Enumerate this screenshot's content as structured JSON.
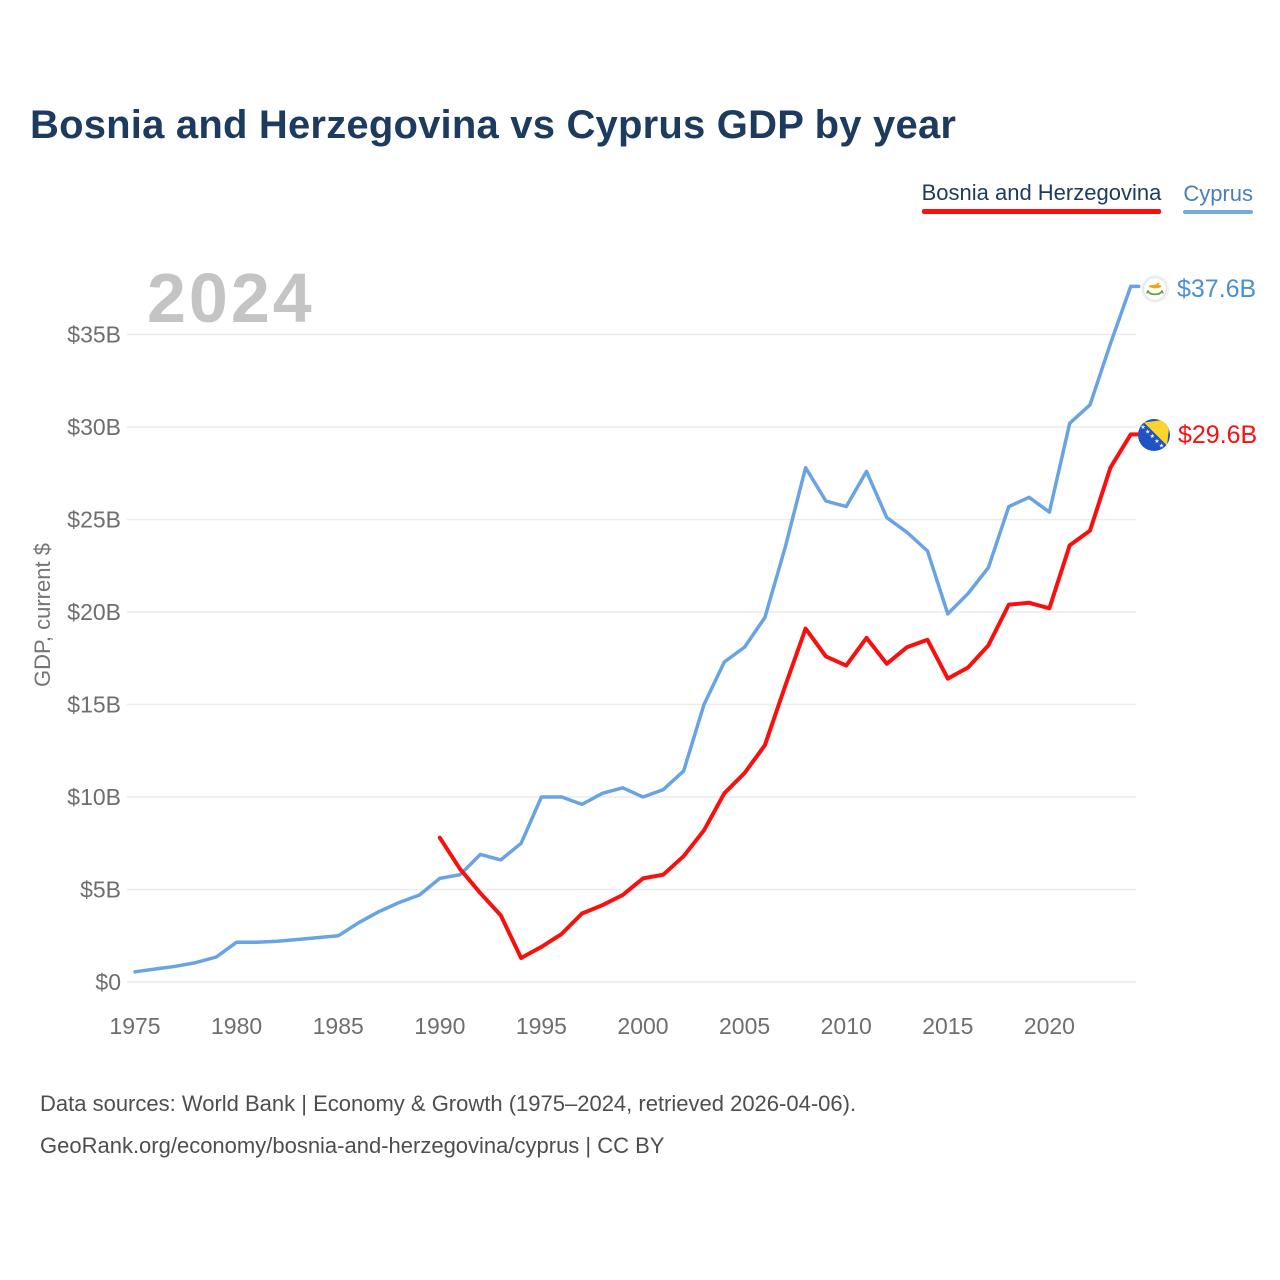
{
  "page": {
    "title": "Bosnia and Herzegovina vs Cyprus GDP by year",
    "watermark": "2024",
    "footer_line1": "Data sources: World Bank | Economy & Growth (1975–2024, retrieved 2026-04-06).",
    "footer_line2": "GeoRank.org/economy/bosnia-and-herzegovina/cyprus | CC BY"
  },
  "legend": {
    "items": [
      {
        "label": "Bosnia and Herzegovina",
        "underline_color": "#fa0f0f",
        "text_color": "#1d3a5f"
      },
      {
        "label": "Cyprus",
        "underline_color": "#76abe0",
        "text_color": "#4a7fb5"
      }
    ]
  },
  "end_labels": [
    {
      "series": "Cyprus",
      "label": "$37.6B",
      "color": "#4a90d5",
      "flag": "cyprus-flag"
    },
    {
      "series": "Bosnia and Herzegovina",
      "label": "$29.6B",
      "color": "#fa0f0f",
      "flag": "bosnia-flag"
    }
  ],
  "chart_data": {
    "type": "line",
    "title": "Bosnia and Herzegovina vs Cyprus GDP by year",
    "xlabel": "",
    "ylabel": "GDP, current $",
    "grid": "horizontal",
    "legend_position": "top-right",
    "xlim": [
      1975,
      2024
    ],
    "ylim": [
      0,
      38
    ],
    "x_ticks": [
      1975,
      1980,
      1985,
      1990,
      1995,
      2000,
      2005,
      2010,
      2015,
      2020
    ],
    "y_ticks": [
      {
        "label": "$0",
        "value": 0
      },
      {
        "label": "$5B",
        "value": 5
      },
      {
        "label": "$10B",
        "value": 10
      },
      {
        "label": "$15B",
        "value": 15
      },
      {
        "label": "$20B",
        "value": 20
      },
      {
        "label": "$25B",
        "value": 25
      },
      {
        "label": "$30B",
        "value": 30
      },
      {
        "label": "$35B",
        "value": 35
      }
    ],
    "x": [
      1975,
      1976,
      1977,
      1978,
      1979,
      1980,
      1981,
      1982,
      1983,
      1984,
      1985,
      1986,
      1987,
      1988,
      1989,
      1990,
      1991,
      1992,
      1993,
      1994,
      1995,
      1996,
      1997,
      1998,
      1999,
      2000,
      2001,
      2002,
      2003,
      2004,
      2005,
      2006,
      2007,
      2008,
      2009,
      2010,
      2011,
      2012,
      2013,
      2014,
      2015,
      2016,
      2017,
      2018,
      2019,
      2020,
      2021,
      2022,
      2023,
      2024
    ],
    "series": [
      {
        "name": "Bosnia and Herzegovina",
        "color": "#fa0f0f",
        "end_label": "$29.6B",
        "values": [
          null,
          null,
          null,
          null,
          null,
          null,
          null,
          null,
          null,
          null,
          null,
          null,
          null,
          null,
          null,
          7.8,
          6.1,
          4.8,
          3.6,
          1.3,
          1.9,
          2.6,
          3.7,
          4.15,
          4.7,
          5.6,
          5.8,
          6.8,
          8.2,
          10.2,
          11.3,
          12.8,
          16.0,
          19.1,
          17.6,
          17.1,
          18.6,
          17.2,
          18.1,
          18.5,
          16.4,
          17.0,
          18.2,
          20.4,
          20.5,
          20.2,
          23.6,
          24.4,
          27.8,
          29.6
        ]
      },
      {
        "name": "Cyprus",
        "color": "#69a3e4",
        "end_label": "$37.6B",
        "values": [
          0.55,
          0.7,
          0.85,
          1.05,
          1.35,
          2.15,
          2.15,
          2.2,
          2.3,
          2.4,
          2.5,
          3.2,
          3.8,
          4.3,
          4.7,
          5.6,
          5.8,
          6.9,
          6.6,
          7.5,
          10.0,
          10.0,
          9.6,
          10.2,
          10.5,
          10.0,
          10.4,
          11.4,
          15.0,
          17.3,
          18.1,
          19.7,
          23.5,
          27.8,
          26.0,
          25.7,
          27.6,
          25.1,
          24.3,
          23.3,
          19.9,
          21.0,
          22.4,
          25.7,
          26.2,
          25.4,
          30.2,
          31.2,
          34.5,
          37.6
        ]
      }
    ]
  }
}
